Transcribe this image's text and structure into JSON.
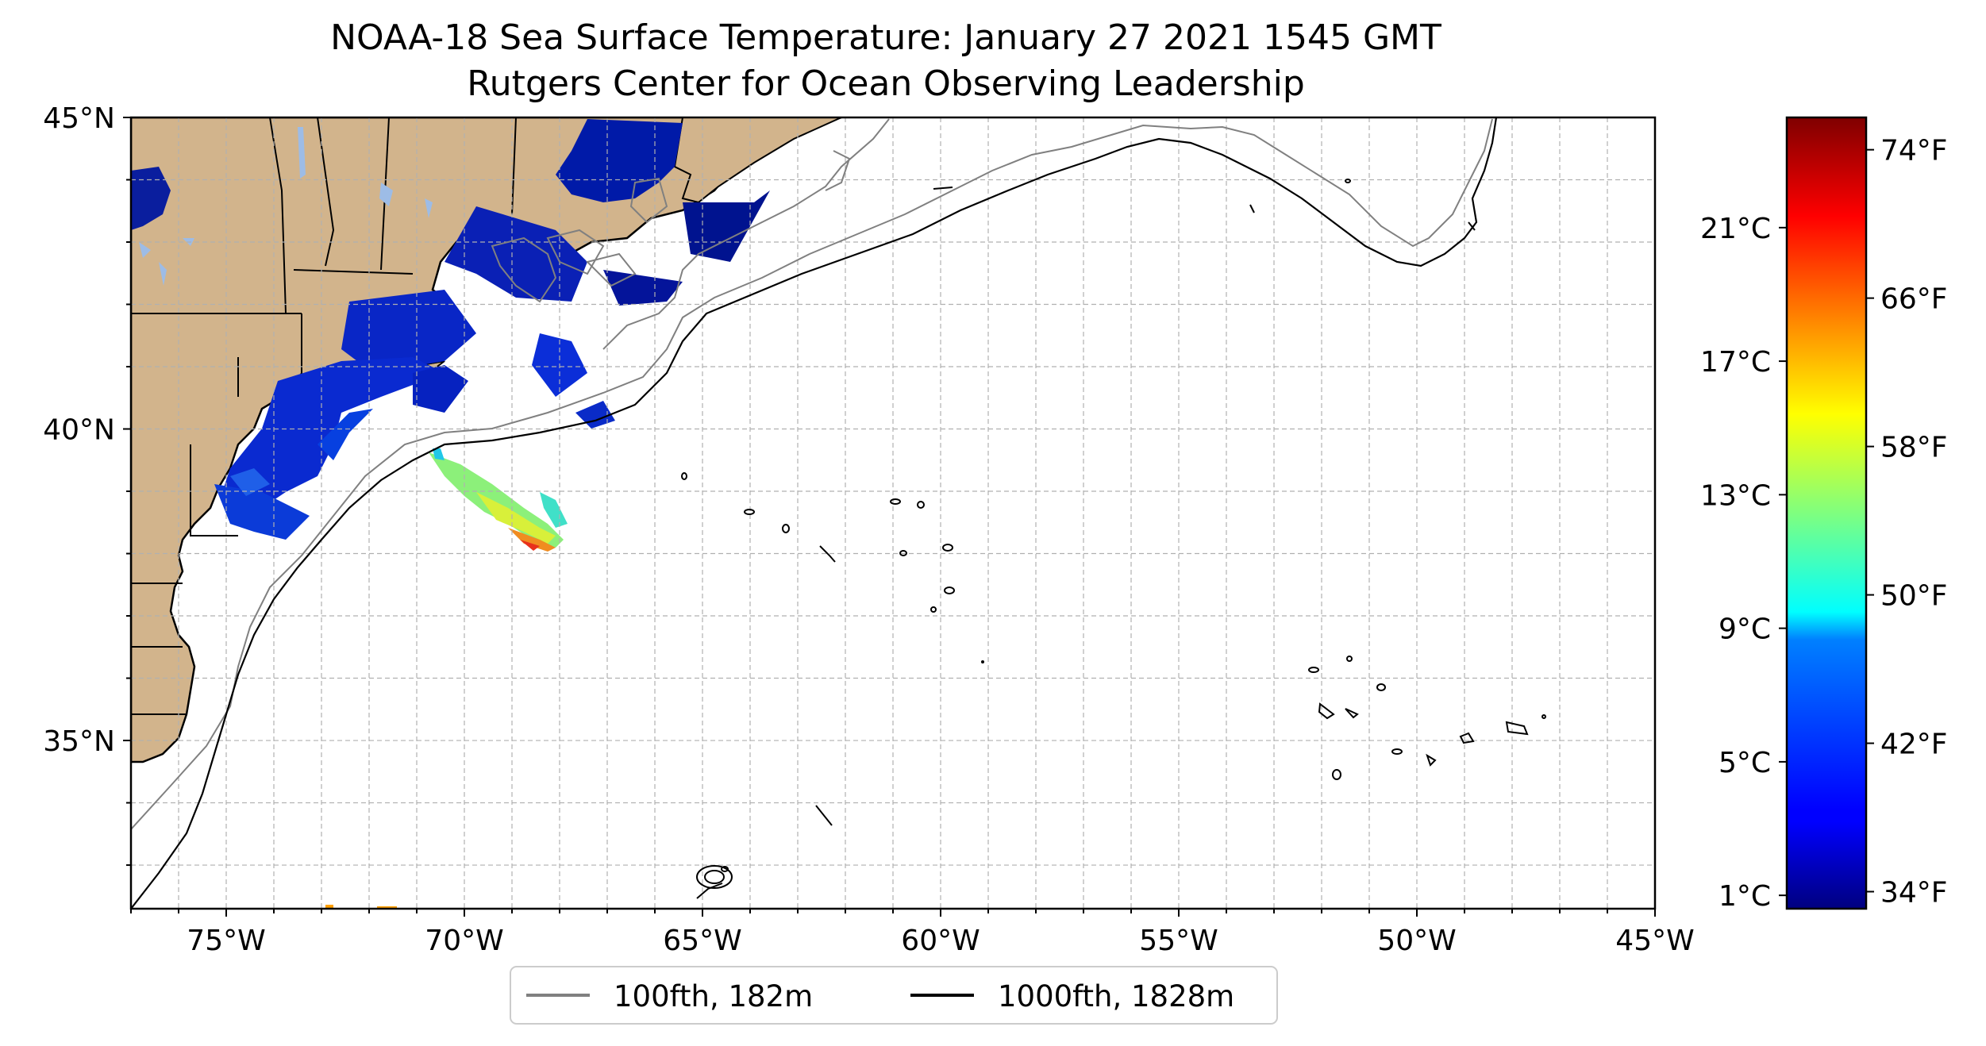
{
  "title": {
    "line1": "NOAA-18 Sea Surface Temperature: January 27 2021 1545 GMT",
    "line2": "Rutgers Center for Ocean Observing Leadership"
  },
  "map": {
    "lon_range": [
      -77,
      -45
    ],
    "lat_range": [
      32.3,
      45
    ],
    "lon_ticks": [
      {
        "value": -75,
        "label": "75°W"
      },
      {
        "value": -70,
        "label": "70°W"
      },
      {
        "value": -65,
        "label": "65°W"
      },
      {
        "value": -60,
        "label": "60°W"
      },
      {
        "value": -55,
        "label": "55°W"
      },
      {
        "value": -50,
        "label": "50°W"
      },
      {
        "value": -45,
        "label": "45°W"
      }
    ],
    "lat_ticks": [
      {
        "value": 45,
        "label": "45°N"
      },
      {
        "value": 40,
        "label": "40°N"
      },
      {
        "value": 35,
        "label": "35°N"
      }
    ],
    "gridlines": "dashed, every 1°",
    "land_color": "#d2b48c",
    "ocean_color": "#ffffff"
  },
  "legend": {
    "placement": "below map, centered",
    "items": [
      {
        "label": "100fth, 182m",
        "color": "#808080"
      },
      {
        "label": "1000fth, 1828m",
        "color": "#000000"
      }
    ]
  },
  "colorbar": {
    "colormap": "jet",
    "range_celsius": [
      0.6,
      24.3
    ],
    "celsius_labels": [
      "1°C",
      "5°C",
      "9°C",
      "13°C",
      "17°C",
      "21°C"
    ],
    "fahrenheit_labels": [
      "34°F",
      "42°F",
      "50°F",
      "58°F",
      "66°F",
      "74°F"
    ]
  }
}
